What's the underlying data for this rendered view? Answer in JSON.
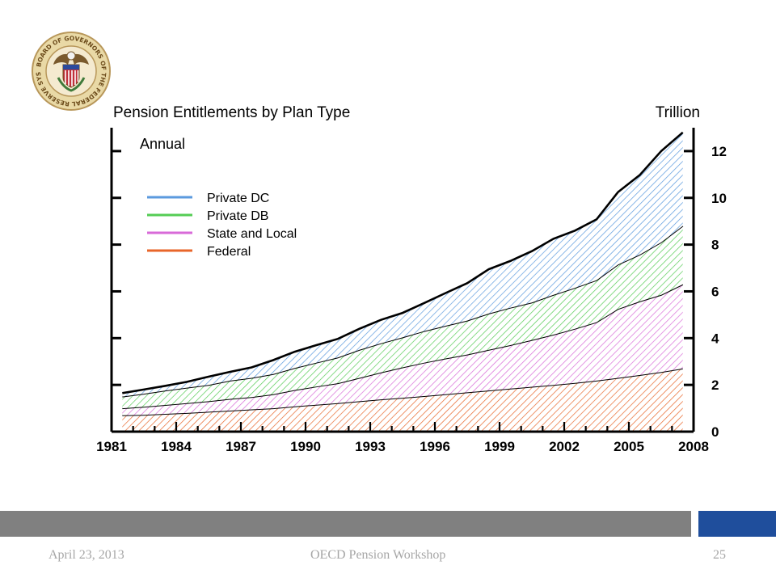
{
  "seal": {
    "text": "BOARD OF GOVERNORS OF THE FEDERAL RESERVE SYSTEM"
  },
  "chart_data": {
    "type": "area",
    "stacked": true,
    "title": "Pension Entitlements by Plan Type",
    "unit_label": "Trillion",
    "frequency_label": "Annual",
    "x": [
      1981,
      1982,
      1983,
      1984,
      1985,
      1986,
      1987,
      1988,
      1989,
      1990,
      1991,
      1992,
      1993,
      1994,
      1995,
      1996,
      1997,
      1998,
      1999,
      2000,
      2001,
      2002,
      2003,
      2004,
      2005,
      2006,
      2007
    ],
    "series": [
      {
        "name": "Federal",
        "color": "#e8662a",
        "values": [
          0.7,
          0.72,
          0.76,
          0.8,
          0.85,
          0.9,
          0.95,
          1.0,
          1.08,
          1.15,
          1.22,
          1.3,
          1.38,
          1.45,
          1.52,
          1.6,
          1.68,
          1.76,
          1.84,
          1.92,
          2.0,
          2.08,
          2.18,
          2.3,
          2.42,
          2.55,
          2.7
        ]
      },
      {
        "name": "State and Local",
        "color": "#d86ad8",
        "values": [
          0.3,
          0.34,
          0.38,
          0.42,
          0.45,
          0.5,
          0.53,
          0.6,
          0.7,
          0.78,
          0.85,
          1.0,
          1.15,
          1.3,
          1.43,
          1.53,
          1.62,
          1.74,
          1.86,
          2.0,
          2.15,
          2.32,
          2.5,
          2.95,
          3.15,
          3.3,
          3.6
        ]
      },
      {
        "name": "Private DB",
        "color": "#55cc55",
        "values": [
          0.5,
          0.56,
          0.62,
          0.66,
          0.7,
          0.78,
          0.82,
          0.86,
          0.94,
          1.02,
          1.1,
          1.2,
          1.25,
          1.28,
          1.35,
          1.4,
          1.45,
          1.55,
          1.6,
          1.6,
          1.7,
          1.75,
          1.8,
          1.9,
          2.0,
          2.25,
          2.5
        ]
      },
      {
        "name": "Private DC",
        "color": "#5b9ade",
        "values": [
          0.15,
          0.18,
          0.2,
          0.25,
          0.35,
          0.38,
          0.45,
          0.6,
          0.7,
          0.75,
          0.8,
          0.9,
          1.0,
          1.05,
          1.2,
          1.4,
          1.6,
          1.9,
          2.0,
          2.2,
          2.4,
          2.45,
          2.6,
          3.1,
          3.4,
          3.9,
          4.0
        ]
      }
    ],
    "xlim": [
      1981,
      2008
    ],
    "ylim": [
      0,
      13
    ],
    "x_ticks": [
      1981,
      1984,
      1987,
      1990,
      1993,
      1996,
      1999,
      2002,
      2005,
      2008
    ],
    "y_ticks": [
      0,
      2,
      4,
      6,
      8,
      10,
      12
    ],
    "legend": {
      "placement": "top-left",
      "order": [
        "Private DC",
        "Private DB",
        "State and Local",
        "Federal"
      ]
    },
    "total_line_color": "#000000"
  },
  "footer": {
    "date": "April 23, 2013",
    "event": "OECD Pension Workshop",
    "page": "25",
    "bar_color": "#808080",
    "accent_color": "#1f4e9c"
  }
}
